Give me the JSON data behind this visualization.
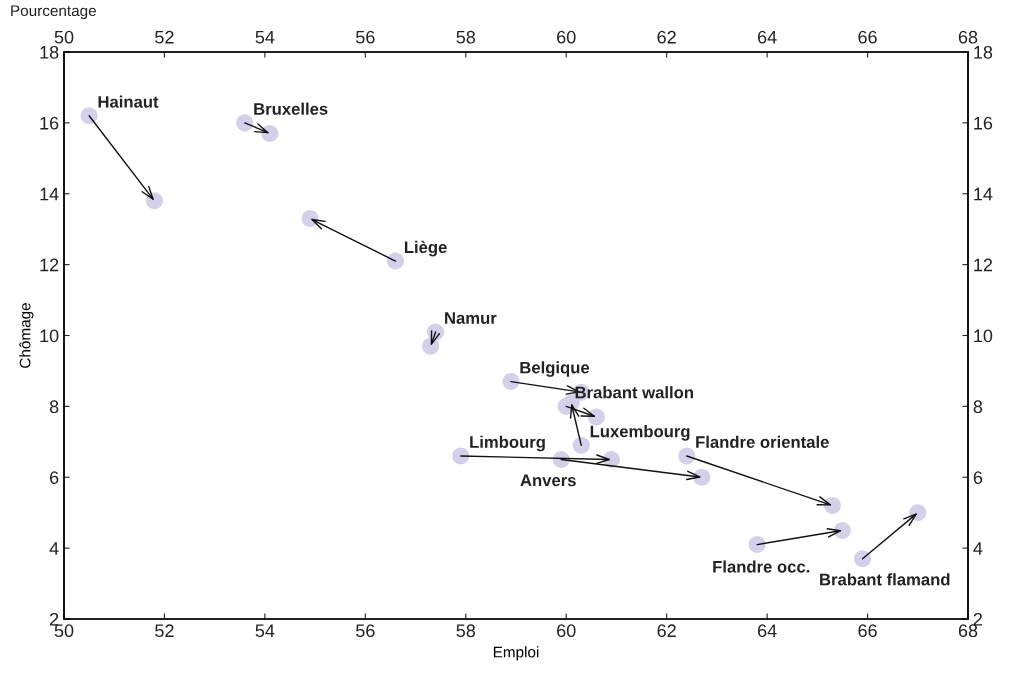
{
  "chart_data": {
    "type": "scatter",
    "xlabel": "Emploi",
    "ylabel": "Chômage",
    "annotations": [
      "Pourcentage"
    ],
    "xlim": [
      50,
      68
    ],
    "xticks": [
      50,
      52,
      54,
      56,
      58,
      60,
      62,
      64,
      66,
      68
    ],
    "x2lim": [
      50,
      68
    ],
    "x2ticks": [
      50,
      52,
      54,
      56,
      58,
      60,
      62,
      64,
      66,
      68
    ],
    "ylim": [
      2,
      18
    ],
    "yticks": [
      2,
      4,
      6,
      8,
      10,
      12,
      14,
      16,
      18
    ],
    "y2lim": [
      2,
      18
    ],
    "y2ticks": [
      2,
      4,
      6,
      8,
      10,
      12,
      14,
      16,
      18
    ],
    "grid": false,
    "legend": false,
    "marker": "circle",
    "series": [
      {
        "name": "Hainaut",
        "color": "#d4d0ea",
        "x": [
          50.5,
          51.8
        ],
        "values": [
          16.2,
          13.8
        ]
      },
      {
        "name": "Bruxelles",
        "color": "#d4d0ea",
        "x": [
          53.6,
          54.1
        ],
        "values": [
          16.0,
          15.7
        ]
      },
      {
        "name": "Liège",
        "color": "#d4d0ea",
        "x": [
          56.6,
          54.9
        ],
        "values": [
          12.1,
          13.3
        ]
      },
      {
        "name": "Namur",
        "color": "#d4d0ea",
        "x": [
          57.4,
          57.3
        ],
        "values": [
          10.1,
          9.7
        ]
      },
      {
        "name": "Belgique",
        "color": "#d4d0ea",
        "x": [
          58.9,
          60.3
        ],
        "values": [
          8.7,
          8.4
        ]
      },
      {
        "name": "Brabant wallon",
        "color": "#d4d0ea",
        "x": [
          60.0,
          60.6
        ],
        "values": [
          8.0,
          7.7
        ]
      },
      {
        "name": "Luxembourg",
        "color": "#d4d0ea",
        "x": [
          60.3,
          60.1
        ],
        "values": [
          6.9,
          8.1
        ]
      },
      {
        "name": "Limbourg",
        "color": "#d4d0ea",
        "x": [
          57.9,
          60.9
        ],
        "values": [
          6.6,
          6.5
        ]
      },
      {
        "name": "Anvers",
        "color": "#d4d0ea",
        "x": [
          59.9,
          62.7
        ],
        "values": [
          6.5,
          6.0
        ]
      },
      {
        "name": "Flandre orientale",
        "color": "#d4d0ea",
        "x": [
          62.4,
          65.3
        ],
        "values": [
          6.6,
          5.2
        ]
      },
      {
        "name": "Flandre occ.",
        "color": "#d4d0ea",
        "x": [
          63.8,
          65.5
        ],
        "values": [
          4.1,
          4.5
        ]
      },
      {
        "name": "Brabant flamand",
        "color": "#d4d0ea",
        "x": [
          65.9,
          67.0
        ],
        "values": [
          3.7,
          5.0
        ]
      }
    ]
  }
}
